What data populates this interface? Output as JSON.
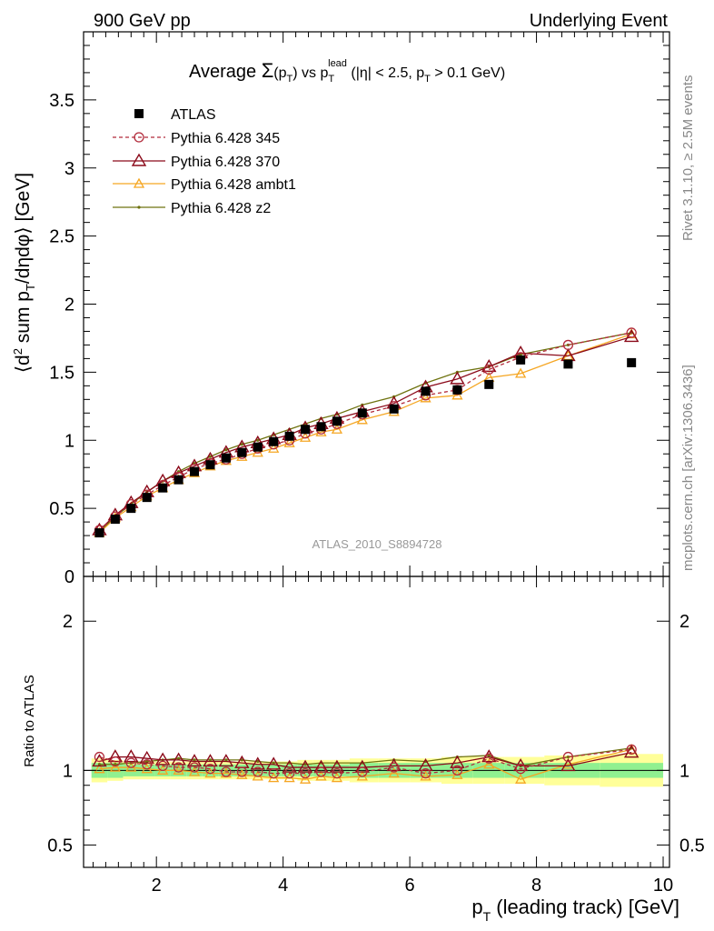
{
  "header": {
    "left": "900 GeV pp",
    "right": "Underlying Event"
  },
  "title": {
    "prefix": "Average ",
    "sigma": "Σ",
    "p_open": "(p",
    "T_sub": "T",
    "p_close": ")",
    "vs": " vs p",
    "lead_sup": "lead",
    "rest1": " (|η| < 2.5, p",
    "rest2": " > 0.1 GeV)"
  },
  "side_labels": {
    "rivet": "Rivet 3.1.10, ≥ 2.5M events",
    "mcplots": "mcplots.cern.ch [arXiv:1306.3436]"
  },
  "watermark": "ATLAS_2010_S8894728",
  "axes": {
    "ylabel_main": {
      "open": "⟨d",
      "sup2": "2",
      "mid": " sum p",
      "subT": "T",
      "close": "/dηdφ⟩ [GeV]"
    },
    "ylabel_ratio": "Ratio to ATLAS",
    "xlabel": {
      "p": "p",
      "subT": "T",
      "rest": " (leading track) [GeV]"
    },
    "x_ticks": [
      "2",
      "4",
      "6",
      "8",
      "10"
    ],
    "y_ticks_main": [
      "0",
      "0.5",
      "1",
      "1.5",
      "2",
      "2.5",
      "3",
      "3.5"
    ],
    "y_ticks_ratio": [
      "0.5",
      "1",
      "2"
    ]
  },
  "colors": {
    "atlas": "#000000",
    "p345": "#b22b3b",
    "p370": "#8b0a1a",
    "ambt1": "#f5a623",
    "z2": "#6f7310",
    "band_inner": "#90f090",
    "band_outer": "#ffff99"
  },
  "chart_data": {
    "type": "scatter",
    "x": [
      1.1,
      1.35,
      1.6,
      1.85,
      2.1,
      2.35,
      2.6,
      2.85,
      3.1,
      3.35,
      3.6,
      3.85,
      4.1,
      4.35,
      4.6,
      4.85,
      5.25,
      5.75,
      6.25,
      6.75,
      7.25,
      7.75,
      8.5,
      9.5
    ],
    "xlim": [
      0.85,
      10.1
    ],
    "ylim_main": [
      0,
      4.0
    ],
    "ylim_ratio": [
      0.35,
      2.3
    ],
    "series": [
      {
        "name": "ATLAS",
        "key": "atlas",
        "values": [
          0.32,
          0.42,
          0.5,
          0.58,
          0.65,
          0.71,
          0.77,
          0.82,
          0.87,
          0.91,
          0.95,
          0.99,
          1.03,
          1.08,
          1.1,
          1.14,
          1.2,
          1.23,
          1.36,
          1.37,
          1.41,
          1.59,
          1.56,
          1.57
        ]
      },
      {
        "name": "Pythia 6.428 345",
        "key": "p345",
        "values": [
          0.34,
          0.44,
          0.53,
          0.6,
          0.67,
          0.73,
          0.79,
          0.83,
          0.86,
          0.9,
          0.94,
          0.97,
          1.0,
          1.05,
          1.08,
          1.12,
          1.19,
          1.25,
          1.33,
          1.37,
          1.52,
          1.61,
          1.7,
          1.79
        ],
        "ratio": [
          1.09,
          1.06,
          1.05,
          1.04,
          1.03,
          1.02,
          1.02,
          1.01,
          0.99,
          0.99,
          0.99,
          0.98,
          0.98,
          0.98,
          0.99,
          0.98,
          0.99,
          1.02,
          0.98,
          1.0,
          1.08,
          1.01,
          1.09,
          1.14
        ]
      },
      {
        "name": "Pythia 6.428 370",
        "key": "p370",
        "values": [
          0.34,
          0.45,
          0.54,
          0.62,
          0.7,
          0.76,
          0.81,
          0.86,
          0.91,
          0.95,
          0.98,
          1.01,
          1.04,
          1.09,
          1.12,
          1.16,
          1.21,
          1.27,
          1.39,
          1.45,
          1.54,
          1.64,
          1.62,
          1.76
        ],
        "ratio": [
          1.06,
          1.09,
          1.09,
          1.08,
          1.07,
          1.07,
          1.06,
          1.06,
          1.06,
          1.05,
          1.04,
          1.04,
          1.02,
          1.02,
          1.02,
          1.02,
          1.02,
          1.03,
          1.03,
          1.05,
          1.09,
          1.03,
          1.03,
          1.12
        ]
      },
      {
        "name": "Pythia 6.428 ambt1",
        "key": "ambt1",
        "values": [
          0.32,
          0.43,
          0.51,
          0.59,
          0.65,
          0.71,
          0.76,
          0.81,
          0.85,
          0.88,
          0.91,
          0.94,
          0.98,
          1.02,
          1.06,
          1.08,
          1.15,
          1.21,
          1.31,
          1.33,
          1.46,
          1.49,
          1.62,
          1.78
        ],
        "ratio": [
          1.01,
          1.02,
          1.02,
          1.01,
          1.0,
          1.0,
          0.99,
          0.98,
          0.98,
          0.97,
          0.96,
          0.95,
          0.95,
          0.94,
          0.96,
          0.95,
          0.96,
          0.98,
          0.96,
          0.97,
          1.04,
          0.94,
          1.04,
          1.14
        ]
      },
      {
        "name": "Pythia 6.428 z2",
        "key": "z2",
        "values": [
          0.33,
          0.44,
          0.53,
          0.62,
          0.7,
          0.77,
          0.83,
          0.88,
          0.93,
          0.97,
          1.0,
          1.04,
          1.08,
          1.12,
          1.16,
          1.19,
          1.26,
          1.32,
          1.42,
          1.5,
          1.54,
          1.63,
          1.7,
          1.79
        ],
        "ratio": [
          1.04,
          1.04,
          1.05,
          1.06,
          1.07,
          1.08,
          1.07,
          1.07,
          1.07,
          1.07,
          1.06,
          1.05,
          1.05,
          1.04,
          1.05,
          1.05,
          1.05,
          1.07,
          1.06,
          1.09,
          1.1,
          1.03,
          1.09,
          1.15
        ]
      }
    ],
    "band_inner": [
      0.05,
      0.05,
      0.04,
      0.04,
      0.04,
      0.04,
      0.04,
      0.04,
      0.04,
      0.04,
      0.04,
      0.04,
      0.04,
      0.04,
      0.04,
      0.04,
      0.05,
      0.05,
      0.05,
      0.05,
      0.05,
      0.05,
      0.05,
      0.05
    ],
    "band_outer": [
      0.08,
      0.07,
      0.06,
      0.06,
      0.06,
      0.06,
      0.06,
      0.06,
      0.06,
      0.06,
      0.06,
      0.06,
      0.06,
      0.07,
      0.07,
      0.07,
      0.08,
      0.08,
      0.08,
      0.09,
      0.09,
      0.09,
      0.1,
      0.11
    ]
  }
}
